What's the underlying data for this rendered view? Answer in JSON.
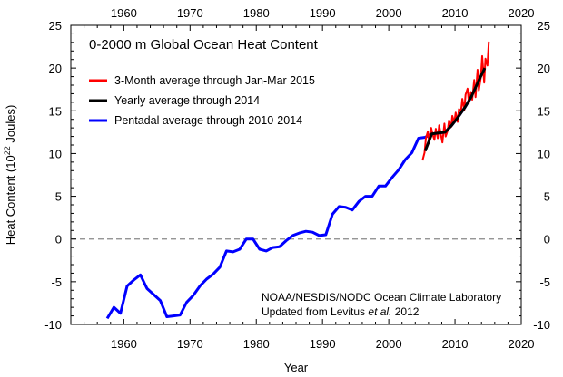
{
  "chart_data": {
    "type": "line",
    "title": "0-2000 m Global Ocean Heat Content",
    "xlabel": "Year",
    "ylabel": "Heat Content (10²² Joules)",
    "ylabel_main": "Heat Content (10",
    "ylabel_exp": "22",
    "ylabel_tail": " Joules)",
    "xlim": [
      1952,
      2020
    ],
    "ylim": [
      -10,
      25
    ],
    "x_ticks": [
      "1960",
      "1970",
      "1980",
      "1990",
      "2000",
      "2010",
      "2020"
    ],
    "x_tick_values": [
      1960,
      1970,
      1980,
      1990,
      2000,
      2010,
      2020
    ],
    "y_ticks": [
      "-10",
      "-5",
      "0",
      "5",
      "10",
      "15",
      "20",
      "25"
    ],
    "y_tick_values": [
      -10,
      -5,
      0,
      5,
      10,
      15,
      20,
      25
    ],
    "zero_line": 0,
    "grid": false,
    "legend_position": "top-left",
    "note_line1": "NOAA/NESDIS/NODC Ocean Climate Laboratory",
    "note_line2_pre": "Updated from Levitus ",
    "note_line2_italic": "et al.",
    "note_line2_post": " 2012",
    "series": [
      {
        "name": "3-Month average through Jan-Mar 2015",
        "color": "#ff0000",
        "x": [
          2005.1,
          2005.4,
          2005.6,
          2005.9,
          2006.1,
          2006.4,
          2006.6,
          2006.9,
          2007.1,
          2007.4,
          2007.6,
          2007.9,
          2008.1,
          2008.4,
          2008.6,
          2008.9,
          2009.1,
          2009.4,
          2009.6,
          2009.9,
          2010.1,
          2010.4,
          2010.6,
          2010.9,
          2011.1,
          2011.4,
          2011.6,
          2011.9,
          2012.1,
          2012.4,
          2012.6,
          2012.9,
          2013.1,
          2013.4,
          2013.6,
          2013.9,
          2014.1,
          2014.4,
          2014.6,
          2014.9,
          2015.1
        ],
        "values": [
          9.2,
          10.1,
          11.8,
          12.6,
          11.2,
          13.0,
          12.3,
          11.6,
          12.9,
          11.8,
          13.3,
          12.1,
          11.3,
          13.5,
          12.0,
          12.7,
          13.9,
          13.1,
          14.4,
          13.6,
          14.8,
          13.7,
          15.2,
          14.9,
          16.4,
          15.1,
          16.9,
          17.6,
          15.9,
          17.2,
          16.3,
          18.6,
          16.6,
          19.8,
          17.4,
          18.9,
          21.4,
          18.3,
          21.1,
          20.3,
          23.1
        ]
      },
      {
        "name": "Yearly average through 2014",
        "color": "#000000",
        "x": [
          2005.5,
          2006.5,
          2007.5,
          2008.5,
          2009.5,
          2010.5,
          2011.5,
          2012.5,
          2013.5,
          2014.5
        ],
        "values": [
          10.3,
          12.3,
          12.4,
          12.5,
          13.3,
          14.3,
          15.4,
          16.7,
          18.4,
          20.0
        ]
      },
      {
        "name": "Pentadal average through 2010-2014",
        "color": "#0000ff",
        "x": [
          1957.5,
          1958.5,
          1959.5,
          1960.5,
          1961.5,
          1962.5,
          1963.5,
          1964.5,
          1965.5,
          1966.5,
          1967.5,
          1968.5,
          1969.5,
          1970.5,
          1971.5,
          1972.5,
          1973.5,
          1974.5,
          1975.5,
          1976.5,
          1977.5,
          1978.5,
          1979.5,
          1980.5,
          1981.5,
          1982.5,
          1983.5,
          1984.5,
          1985.5,
          1986.5,
          1987.5,
          1988.5,
          1989.5,
          1990.5,
          1991.5,
          1992.5,
          1993.5,
          1994.5,
          1995.5,
          1996.5,
          1997.5,
          1998.5,
          1999.5,
          2000.5,
          2001.5,
          2002.5,
          2003.5,
          2004.5,
          2005.5,
          2006.5,
          2007.5,
          2008.5,
          2009.5,
          2010.5,
          2011.5,
          2012.5
        ],
        "values": [
          -9.3,
          -8.0,
          -8.7,
          -5.5,
          -4.8,
          -4.2,
          -5.8,
          -6.5,
          -7.2,
          -9.1,
          -9.0,
          -8.9,
          -7.4,
          -6.6,
          -5.5,
          -4.7,
          -4.1,
          -3.3,
          -1.4,
          -1.5,
          -1.2,
          0.0,
          0.0,
          -1.2,
          -1.4,
          -1.0,
          -0.9,
          -0.2,
          0.4,
          0.7,
          0.9,
          0.8,
          0.4,
          0.5,
          2.9,
          3.8,
          3.7,
          3.4,
          4.4,
          5.0,
          5.0,
          6.2,
          6.2,
          7.2,
          8.1,
          9.3,
          10.1,
          11.8,
          11.9,
          12.3,
          12.4,
          12.5,
          13.3,
          14.3,
          15.4,
          16.7
        ]
      }
    ]
  }
}
